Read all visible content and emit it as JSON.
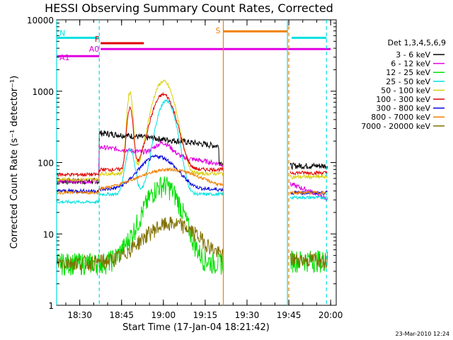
{
  "chart_data": {
    "type": "line",
    "title": "HESSI Observing Summary Count Rates, Corrected",
    "xlabel": "Start Time (17-Jan-04 18:21:42)",
    "ylabel": "Corrected Count Rate (s⁻¹ detector⁻¹)",
    "y_scale": "log",
    "ylim": [
      1,
      10000
    ],
    "xlim": [
      "18:21:42",
      "20:02:00"
    ],
    "x_ticks": [
      "18:30",
      "18:45",
      "19:00",
      "19:15",
      "19:30",
      "19:45",
      "20:00"
    ],
    "y_ticks": [
      "1",
      "10",
      "100",
      "1000",
      "10000"
    ],
    "footer_date": "23-Mar-2010 12:24",
    "legend_title": "Det 1,3,4,5,6,9",
    "series": [
      {
        "name": "3 - 6 keV",
        "color": "#000000"
      },
      {
        "name": "6 - 12 keV",
        "color": "#e000e0"
      },
      {
        "name": "12 - 25 keV",
        "color": "#00e000"
      },
      {
        "name": "25 - 50 keV",
        "color": "#00e0e0"
      },
      {
        "name": "50 - 100 keV",
        "color": "#d8d000"
      },
      {
        "name": "100 - 300 keV",
        "color": "#e00000"
      },
      {
        "name": "300 - 800 keV",
        "color": "#0000e0"
      },
      {
        "name": "800 - 7000 keV",
        "color": "#f08000"
      },
      {
        "name": "7000 - 20000 keV",
        "color": "#807000"
      }
    ],
    "flags": [
      {
        "label": "N",
        "color": "#00e0e0",
        "segments": [
          [
            "18:21:42",
            "18:37:00"
          ],
          [
            "19:46:00",
            "19:58:30"
          ]
        ],
        "level": 5600
      },
      {
        "label": "F",
        "color": "#e00000",
        "segments": [
          [
            "18:37:30",
            "18:53:00"
          ]
        ],
        "level": 4700
      },
      {
        "label": "A0",
        "color": "#e000e0",
        "segments": [
          [
            "18:37:30",
            "20:00:00"
          ]
        ],
        "level": 3900
      },
      {
        "label": "A1",
        "color": "#e000e0",
        "segments": [
          [
            "18:21:42",
            "18:37:00"
          ]
        ],
        "level": 3100
      },
      {
        "label": "S",
        "color": "#f08000",
        "segments": [
          [
            "19:21:30",
            "19:44:30"
          ]
        ],
        "level": 6900
      }
    ],
    "markers": [
      {
        "time": "18:37:00",
        "color": "#00e0e0",
        "style": "dashed"
      },
      {
        "time": "19:21:30",
        "color": "#f08000",
        "style": "solid"
      },
      {
        "time": "19:44:30",
        "color": "#00e0e0",
        "style": "solid"
      },
      {
        "time": "19:45:00",
        "color": "#f08000",
        "style": "dashed"
      },
      {
        "time": "19:58:30",
        "color": "#00e0e0",
        "style": "dashed"
      },
      {
        "time": "18:21:42",
        "color": "#00e0e0",
        "style": "solid"
      }
    ]
  }
}
